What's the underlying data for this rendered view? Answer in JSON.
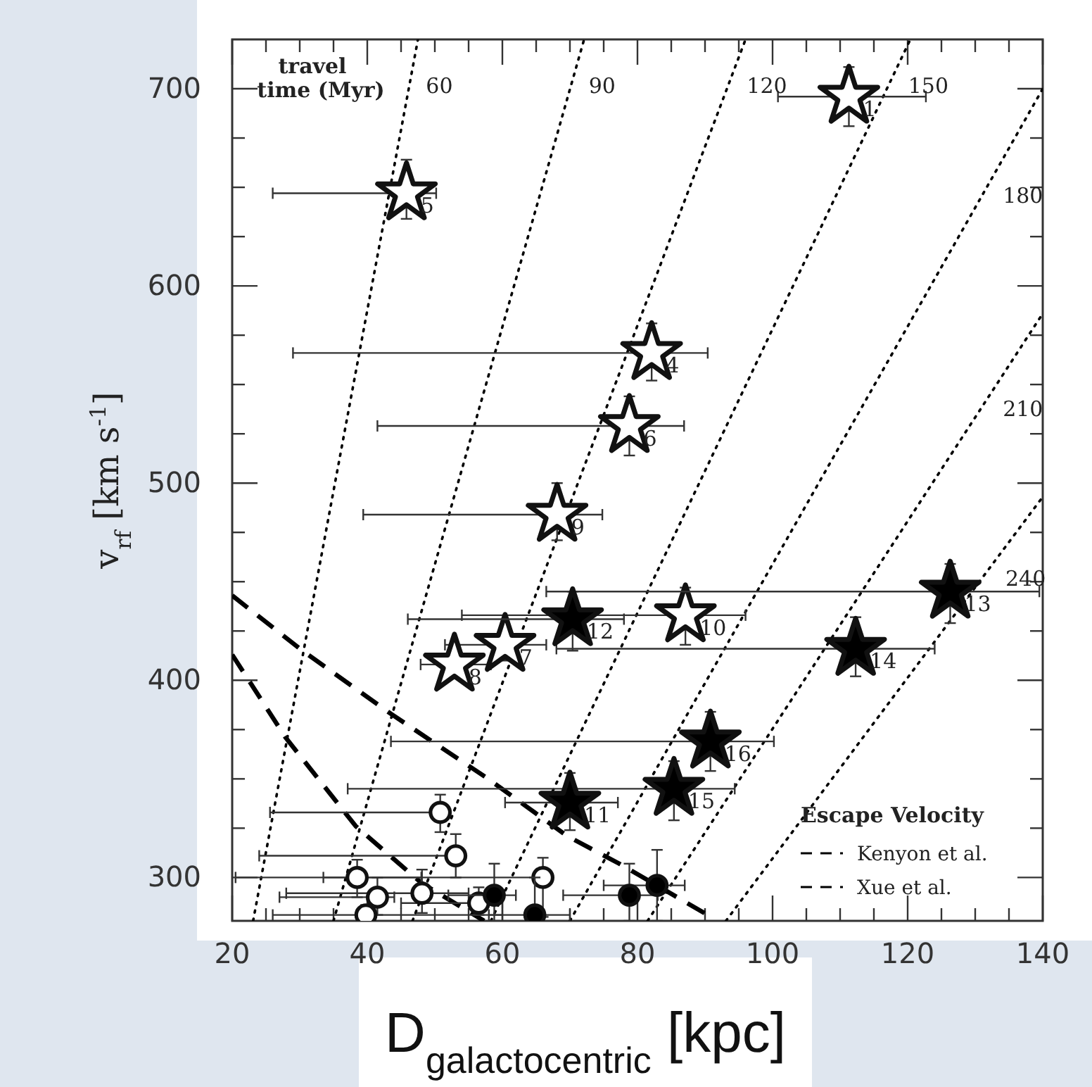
{
  "chart_data": {
    "type": "scatter",
    "xlabel": "D$_{galactocentric}$ [kpc]",
    "ylabel": "v$_{rf}$ [km s$^{-1}$]",
    "legend_title": "Escape Velocity",
    "legend": "bottom right",
    "grid": false,
    "xlim": [
      20,
      140
    ],
    "ylim": [
      278,
      725
    ],
    "xticks": [
      20,
      {
        "value": 25,
        "label": null
      },
      {
        "value": 30,
        "label": null
      },
      {
        "value": 35,
        "label": null
      },
      40,
      {
        "value": 45,
        "label": null
      },
      {
        "value": 50,
        "label": null
      },
      {
        "value": 55,
        "label": null
      },
      60,
      {
        "value": 65,
        "label": null
      },
      {
        "value": 70,
        "label": null
      },
      {
        "value": 75,
        "label": null
      },
      80,
      {
        "value": 85,
        "label": null
      },
      {
        "value": 90,
        "label": null
      },
      {
        "value": 95,
        "label": null
      },
      100,
      {
        "value": 105,
        "label": null
      },
      {
        "value": 110,
        "label": null
      },
      {
        "value": 115,
        "label": null
      },
      120,
      {
        "value": 125,
        "label": null
      },
      {
        "value": 130,
        "label": null
      },
      {
        "value": 135,
        "label": null
      },
      140
    ],
    "yticks": [
      300,
      {
        "value": 325,
        "label": null
      },
      {
        "value": 350,
        "label": null
      },
      {
        "value": 375,
        "label": null
      },
      400,
      {
        "value": 425,
        "label": null
      },
      {
        "value": 450,
        "label": null
      },
      {
        "value": 475,
        "label": null
      },
      500,
      {
        "value": 525,
        "label": null
      },
      {
        "value": 550,
        "label": null
      },
      {
        "value": 575,
        "label": null
      },
      600,
      {
        "value": 625,
        "label": null
      },
      {
        "value": 650,
        "label": null
      },
      {
        "value": 675,
        "label": null
      },
      700
    ],
    "series": [
      {
        "type": "line",
        "line_style": "dotted",
        "color": "#000000",
        "x": [
          23.1,
          47.5
        ],
        "values": [
          278,
          725
        ]
      },
      {
        "type": "line",
        "line_style": "dotted",
        "color": "#000000",
        "x": [
          35.0,
          72.1
        ],
        "values": [
          278,
          725
        ]
      },
      {
        "type": "line",
        "line_style": "dotted",
        "color": "#000000",
        "x": [
          46.7,
          96.0
        ],
        "values": [
          278,
          725
        ]
      },
      {
        "type": "line",
        "line_style": "dotted",
        "color": "#000000",
        "x": [
          58.3,
          120.4
        ],
        "values": [
          278,
          725
        ]
      },
      {
        "type": "line",
        "line_style": "dotted",
        "color": "#000000",
        "x": [
          70.0,
          140
        ],
        "values": [
          278,
          700
        ]
      },
      {
        "type": "line",
        "line_style": "dotted",
        "color": "#000000",
        "x": [
          81.5,
          140
        ],
        "values": [
          278,
          586
        ]
      },
      {
        "type": "line",
        "line_style": "dotted",
        "color": "#000000",
        "x": [
          93.1,
          140
        ],
        "values": [
          278,
          493
        ]
      },
      {
        "type": "line",
        "name": "Kenyon et al.",
        "line_style": "dashed",
        "color": "#000000",
        "x": [
          20,
          30.4,
          43.5,
          57.9,
          69.6,
          77.3,
          90.4
        ],
        "values": [
          443,
          415,
          383,
          350,
          321,
          307,
          281
        ]
      },
      {
        "type": "line",
        "name": "Xue et al.",
        "line_style": "dashed",
        "color": "#000000",
        "x": [
          20,
          27.9,
          38.3,
          48.1,
          57.3
        ],
        "values": [
          413,
          371,
          326,
          297,
          278
        ]
      },
      {
        "marker": "star",
        "color": "#ffffff",
        "x": [
          111.3,
          82.1,
          45.8,
          78.8,
          60.4,
          52.9,
          68.1,
          87.1
        ],
        "values": [
          696,
          566,
          647,
          529,
          418,
          408,
          484,
          433
        ],
        "errors": [
          [
            681,
            711
          ],
          [
            552,
            581
          ],
          [
            634,
            664
          ],
          [
            514,
            544
          ],
          [
            410,
            426
          ],
          [
            402,
            414
          ],
          [
            471,
            500
          ],
          [
            418,
            447
          ]
        ],
        "xerrors": [
          [
            100.8,
            122.7
          ],
          [
            29.0,
            90.4
          ],
          [
            26.0,
            50.2
          ],
          [
            41.5,
            86.9
          ],
          [
            51.5,
            66.5
          ],
          [
            47.9,
            58.3
          ],
          [
            39.4,
            74.8
          ],
          [
            54,
            96
          ]
        ]
      },
      {
        "marker": "star",
        "color": "#000000",
        "x": [
          70.0,
          70.4,
          126.3,
          112.3,
          85.4,
          90.8
        ],
        "values": [
          338,
          431,
          445,
          416,
          345,
          369
        ],
        "errors": [
          [
            324,
            353
          ],
          [
            415,
            445
          ],
          [
            429,
            459
          ],
          [
            402,
            432
          ],
          [
            329,
            359
          ],
          [
            354,
            384
          ]
        ],
        "xerrors": [
          [
            60.4,
            77.1
          ],
          [
            46,
            78
          ],
          [
            66.5,
            139.5
          ],
          [
            68,
            124
          ],
          [
            37.1,
            94.4
          ],
          [
            43.5,
            100.2
          ]
        ]
      },
      {
        "marker": "circle",
        "color": "#ffffff",
        "x": [
          50.8,
          53.1,
          38.5,
          41.5,
          66.0,
          48.1,
          56.5,
          39.8
        ],
        "values": [
          333,
          311,
          300,
          290,
          300,
          292,
          287,
          281
        ],
        "errors": [
          [
            323,
            342
          ],
          [
            300,
            322
          ],
          [
            290,
            309
          ],
          [
            281,
            300
          ],
          [
            280,
            310
          ],
          [
            282,
            304
          ],
          [
            281,
            295
          ],
          [
            278,
            286
          ]
        ],
        "xerrors": [
          [
            25.6,
            51
          ],
          [
            24,
            53
          ],
          [
            20.5,
            48
          ],
          [
            27,
            44
          ],
          [
            33.5,
            66
          ],
          [
            28,
            55
          ],
          [
            45,
            60
          ],
          [
            26,
            60
          ]
        ]
      },
      {
        "marker": "circle",
        "color": "#000000",
        "x": [
          58.8,
          64.8,
          78.8,
          82.9
        ],
        "values": [
          291,
          281,
          291,
          296
        ],
        "errors": [
          [
            278,
            307
          ],
          [
            278,
            300
          ],
          [
            278,
            307
          ],
          [
            278,
            314
          ]
        ],
        "xerrors": [
          [
            52,
            62
          ],
          [
            58,
            70
          ],
          [
            69,
            83
          ],
          [
            75,
            87
          ]
        ]
      }
    ],
    "annotations": [
      "travel time (Myr)",
      {
        "text": "60",
        "x": 46.6,
        "y": 708
      },
      {
        "text": "90",
        "x": 70.7,
        "y": 708
      },
      {
        "text": "120",
        "x": 94.1,
        "y": 708
      },
      {
        "text": "150",
        "x": 118.0,
        "y": 708
      },
      {
        "text": "180",
        "x": 132.0,
        "y": 652
      },
      {
        "text": "210",
        "x": 132.0,
        "y": 544
      },
      {
        "text": "240",
        "x": 132.4,
        "y": 458
      },
      {
        "text": "1",
        "x": 111.3,
        "y": 696
      },
      {
        "text": "4",
        "x": 82.1,
        "y": 566
      },
      {
        "text": "5",
        "x": 45.8,
        "y": 647
      },
      {
        "text": "6",
        "x": 78.8,
        "y": 529
      },
      {
        "text": "7",
        "x": 60.4,
        "y": 418
      },
      {
        "text": "8",
        "x": 52.9,
        "y": 408
      },
      {
        "text": "9",
        "x": 68.1,
        "y": 484
      },
      {
        "text": "10",
        "x": 87.1,
        "y": 433
      },
      {
        "text": "11",
        "x": 70.0,
        "y": 338
      },
      {
        "text": "12",
        "x": 70.4,
        "y": 431
      },
      {
        "text": "13",
        "x": 126.3,
        "y": 445
      },
      {
        "text": "14",
        "x": 112.3,
        "y": 416
      },
      {
        "text": "15",
        "x": 85.4,
        "y": 345
      },
      {
        "text": "16",
        "x": 90.8,
        "y": 369
      }
    ]
  }
}
